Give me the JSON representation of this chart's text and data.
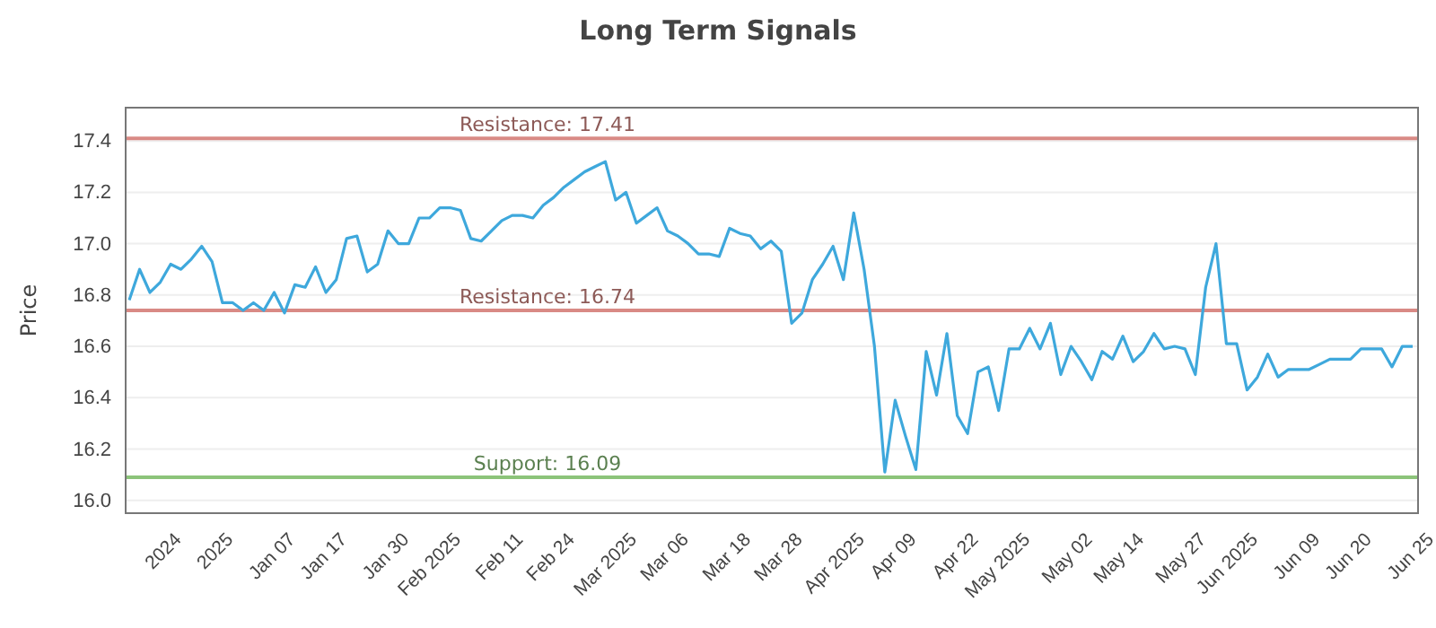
{
  "chart_data": {
    "type": "line",
    "title": "Long Term Signals",
    "ylabel": "Price",
    "categories": [
      null,
      null,
      null,
      "2024",
      null,
      null,
      null,
      null,
      "2025",
      null,
      null,
      null,
      null,
      null,
      "Jan 07",
      null,
      null,
      null,
      null,
      "Jan 17",
      null,
      null,
      null,
      null,
      null,
      "Jan 30",
      null,
      null,
      null,
      null,
      "Feb 2025",
      null,
      null,
      null,
      null,
      null,
      "Feb 11",
      null,
      null,
      null,
      null,
      "Feb 24",
      null,
      null,
      null,
      null,
      null,
      "Mar 2025",
      null,
      null,
      null,
      null,
      "Mar 06",
      null,
      null,
      null,
      null,
      null,
      "Mar 18",
      null,
      null,
      null,
      null,
      "Mar 28",
      null,
      null,
      null,
      null,
      null,
      "Apr 2025",
      null,
      null,
      null,
      null,
      "Apr 09",
      null,
      null,
      null,
      null,
      null,
      "Apr 22",
      null,
      null,
      null,
      null,
      "May 2025",
      null,
      null,
      null,
      null,
      null,
      "May 02",
      null,
      null,
      null,
      null,
      "May 14",
      null,
      null,
      null,
      null,
      null,
      "May 27",
      null,
      null,
      null,
      null,
      "Jun 2025",
      null,
      null,
      null,
      null,
      null,
      "Jun 09",
      null,
      null,
      null,
      null,
      "Jun 20",
      null,
      null,
      null,
      null,
      null,
      "Jun 25"
    ],
    "series": [
      {
        "color": "#3ea8dc",
        "values": [
          16.78,
          16.9,
          16.81,
          16.85,
          16.92,
          16.9,
          16.94,
          16.99,
          16.93,
          16.77,
          16.77,
          16.74,
          16.77,
          16.74,
          16.81,
          16.73,
          16.84,
          16.83,
          16.91,
          16.81,
          16.86,
          17.02,
          17.03,
          16.89,
          16.92,
          17.05,
          17.0,
          17.0,
          17.1,
          17.1,
          17.14,
          17.14,
          17.13,
          17.02,
          17.01,
          17.05,
          17.09,
          17.11,
          17.11,
          17.1,
          17.15,
          17.18,
          17.22,
          17.25,
          17.28,
          17.3,
          17.32,
          17.17,
          17.2,
          17.08,
          17.11,
          17.14,
          17.05,
          17.03,
          17.0,
          16.96,
          16.96,
          16.95,
          17.06,
          17.04,
          17.03,
          16.98,
          17.01,
          16.97,
          16.69,
          16.73,
          16.86,
          16.92,
          16.99,
          16.86,
          17.12,
          16.9,
          16.6,
          16.11,
          16.39,
          16.25,
          16.12,
          16.58,
          16.41,
          16.65,
          16.33,
          16.26,
          16.5,
          16.52,
          16.35,
          16.59,
          16.59,
          16.67,
          16.59,
          16.69,
          16.49,
          16.6,
          16.54,
          16.47,
          16.58,
          16.55,
          16.64,
          16.54,
          16.58,
          16.65,
          16.59,
          16.6,
          16.59,
          16.49,
          16.83,
          17.0,
          16.61,
          16.61,
          16.43,
          16.48,
          16.57,
          16.48,
          16.51,
          16.51,
          16.51,
          16.53,
          16.55,
          16.55,
          16.55,
          16.59,
          16.59,
          16.59,
          16.52,
          16.6,
          16.6
        ]
      }
    ],
    "ylim": [
      15.95,
      17.53
    ],
    "yticks": [
      {
        "value": 16.0,
        "label": "16.0"
      },
      {
        "value": 16.2,
        "label": "16.2"
      },
      {
        "value": 16.4,
        "label": "16.4"
      },
      {
        "value": 16.6,
        "label": "16.6"
      },
      {
        "value": 16.8,
        "label": "16.8"
      },
      {
        "value": 17.0,
        "label": "17.0"
      },
      {
        "value": 17.2,
        "label": "17.2"
      },
      {
        "value": 17.4,
        "label": "17.4"
      }
    ],
    "grid": "y",
    "ref_lines": [
      {
        "axis": "y",
        "value": 17.41,
        "label": "Resistance: 17.41",
        "color": "#d98a85"
      },
      {
        "axis": "y",
        "value": 16.74,
        "label": "Resistance: 16.74",
        "color": "#d98a85"
      },
      {
        "axis": "y",
        "value": 16.09,
        "label": "Support: 16.09",
        "color": "#8cc47a"
      }
    ]
  }
}
